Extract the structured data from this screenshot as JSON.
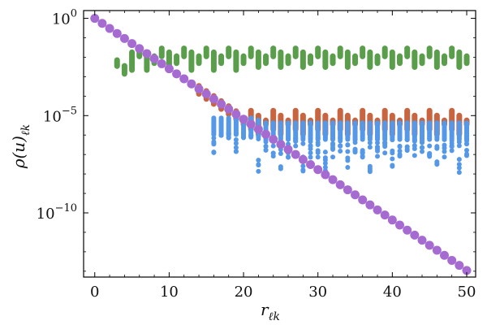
{
  "chart_data": {
    "type": "scatter",
    "title": "",
    "xlabel": "r",
    "xlabel_subscript": "ℓk",
    "ylabel": "ρ(u)",
    "ylabel_subscript": "ℓk",
    "xlim": [
      -1.5,
      51.2
    ],
    "ylim_log10": [
      -13.3,
      0.4
    ],
    "yscale": "log",
    "grid": false,
    "legend": "none",
    "xticks": [
      {
        "value": 0,
        "label": "0"
      },
      {
        "value": 10,
        "label": "10"
      },
      {
        "value": 20,
        "label": "20"
      },
      {
        "value": 30,
        "label": "30"
      },
      {
        "value": 40,
        "label": "40"
      },
      {
        "value": 50,
        "label": "50"
      }
    ],
    "yticks": [
      {
        "exp": 0,
        "base": "10",
        "sup": "0"
      },
      {
        "exp": -5,
        "base": "10",
        "sup": "−5"
      },
      {
        "exp": -10,
        "base": "10",
        "sup": "−10"
      }
    ],
    "series": [
      {
        "name": "green",
        "color": "#5a9e4b",
        "marker": "capsule",
        "x_range": [
          0,
          50
        ],
        "description_log10": "follows diagonal until r≈3, then oscillating band between about -1.4 and -2.8",
        "diag_slope_log10": -0.2592,
        "band_top_log10": -1.35,
        "band_bottom_log10": -2.8
      },
      {
        "name": "orange",
        "color": "#c8643f",
        "marker": "capsule",
        "x_range": [
          0,
          50
        ],
        "description_log10": "follows diagonal until r≈14, then oscillating band between about -4.6 and -6.0",
        "band_top_log10": -4.6,
        "band_bottom_log10": -6.0
      },
      {
        "name": "blue",
        "color": "#5598e8",
        "marker": "dot",
        "x_range": [
          0,
          50
        ],
        "description_log10": "follows diagonal until r≈16, then scattered points between about -5.2 and -8.0",
        "band_top_log10": -5.2,
        "band_bottom_log10": -7.95
      },
      {
        "name": "purple",
        "color": "#a66bd0",
        "marker": "circle",
        "x_range": [
          0,
          50
        ],
        "description_log10": "straight line on log scale from 0 at r=0 to about -12.95 at r=50",
        "slope_log10": -0.2592
      }
    ]
  }
}
